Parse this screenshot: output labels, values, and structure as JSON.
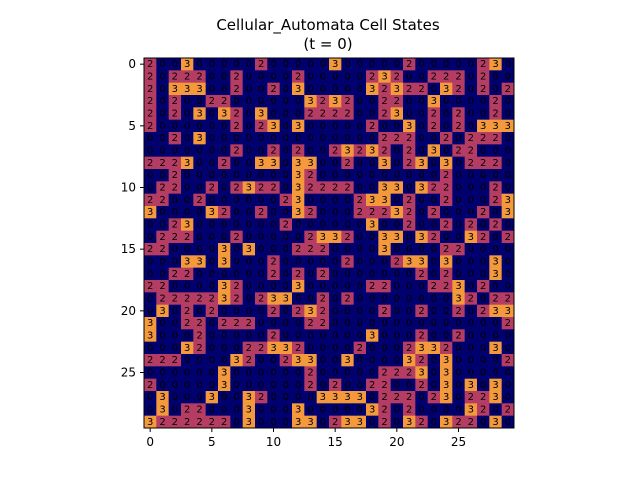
{
  "chart_data": {
    "type": "heatmap",
    "title": "Cellular_Automata Cell States",
    "subtitle": "(t = 0)",
    "xlabel": "",
    "ylabel": "",
    "rows": 30,
    "cols": 30,
    "xticks": [
      "0",
      "5",
      "10",
      "15",
      "20",
      "25"
    ],
    "yticks": [
      "0",
      "5",
      "10",
      "15",
      "20",
      "25"
    ],
    "state_colors": {
      "0": "#00006e",
      "1": "#1a0a5e",
      "2": "#b53d64",
      "3": "#f59a3c"
    },
    "grid": [
      "200300000200000300000200000230",
      "202220020000200000232002220200",
      "203330020020300000323220320202",
      "202002200000032320022003000020",
      "202030320300022220023002020020",
      "200000020230300000200302020333",
      "002030000000000000022200202220",
      "000000020020200232320203022000",
      "222300200330330020030230302220",
      "002000000000320000000000200000",
      "022002023220322220033032200020",
      "220020000002300002330200200023",
      "300003200200320002223202000203",
      "002300000002000000300200202020",
      "022200020000023320033032003202",
      "220000303000222000030000220000",
      "000330300020000020002330300030",
      "002200000020202000000020200030",
      "220000320000300000220002230200",
      "022222320233002020000000032022",
      "030202000020232000020020020233",
      "300220222000022000000000000002",
      "300020000020000000300020020000",
      "000320002233200002000233200030",
      "222000032002330030000320300002",
      "000000300000020000022230300000",
      "200000300000020200220020303030",
      "030003003200003333022202302230",
      "030220003000300000320200003202",
      "322222203000330233020320322030"
    ]
  }
}
